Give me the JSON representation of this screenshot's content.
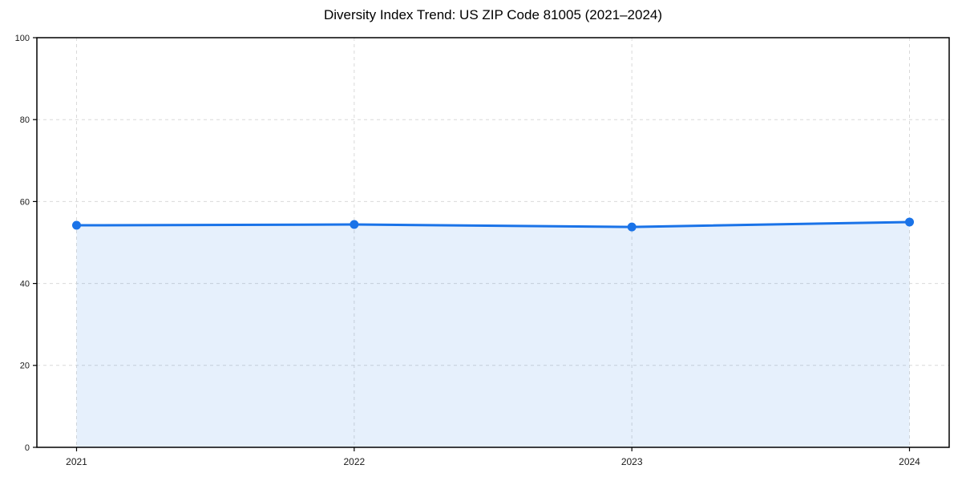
{
  "chart_data": {
    "type": "area",
    "title": "Diversity Index Trend: US ZIP Code 81005 (2021–2024)",
    "x": [
      2021,
      2022,
      2023,
      2024
    ],
    "xtick_labels": [
      "2021",
      "2022",
      "2023",
      "2024"
    ],
    "series": [
      {
        "name": "Diversity Index",
        "values": [
          54.2,
          54.4,
          53.8,
          55.0
        ]
      }
    ],
    "xlabel": "",
    "ylabel": "",
    "ylim": [
      0,
      100
    ],
    "yticks": [
      0,
      20,
      40,
      60,
      80,
      100
    ],
    "grid": "dashed-both-axes",
    "legend": "none",
    "marker": "circle",
    "colors": {
      "line": "#1a73e8",
      "fill": "#1a73e8",
      "fill_opacity": 0.11,
      "grid": "#d9d9d9",
      "axis": "#000000",
      "tick_label": "#1a1a1a",
      "title": "#000000",
      "background": "#ffffff"
    }
  }
}
